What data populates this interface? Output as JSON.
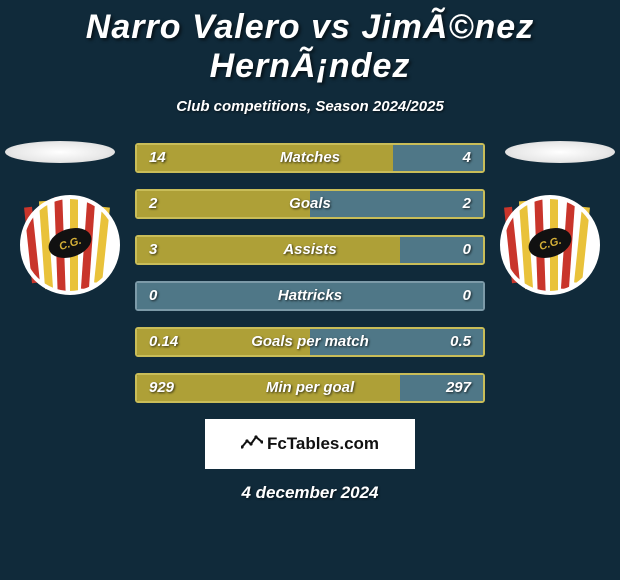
{
  "title": "Narro Valero vs JimÃ©nez HernÃ¡ndez",
  "subtitle": "Club competitions, Season 2024/2025",
  "date": "4 december 2024",
  "footer_brand": "FcTables.com",
  "colors": {
    "background": "#102a3a",
    "bar_left_fill": "#aea037",
    "bar_right_fill": "#4f7787",
    "bar_border": "#c9bd58",
    "bar_neutral": "#4f7787",
    "bar_neutral_border": "#7c9aa8"
  },
  "bars": [
    {
      "label": "Matches",
      "left": "14",
      "right": "4",
      "left_pct": 74,
      "scheme": "yellow"
    },
    {
      "label": "Goals",
      "left": "2",
      "right": "2",
      "left_pct": 50,
      "scheme": "yellow"
    },
    {
      "label": "Assists",
      "left": "3",
      "right": "0",
      "left_pct": 76,
      "scheme": "yellow"
    },
    {
      "label": "Hattricks",
      "left": "0",
      "right": "0",
      "left_pct": 50,
      "scheme": "neutral"
    },
    {
      "label": "Goals per match",
      "left": "0.14",
      "right": "0.5",
      "left_pct": 50,
      "scheme": "yellow"
    },
    {
      "label": "Min per goal",
      "left": "929",
      "right": "297",
      "left_pct": 76,
      "scheme": "yellow"
    }
  ]
}
